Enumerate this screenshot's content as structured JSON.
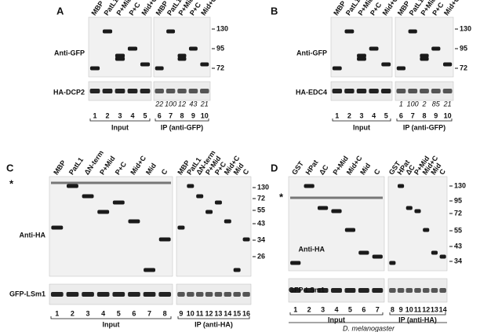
{
  "panels": [
    {
      "label": "A",
      "input_lanes": [
        "MBP",
        "PatL1",
        "P+Mid",
        "P+C",
        "Mid+C"
      ],
      "ip_lanes": [
        "MBP",
        "PatL1",
        "P+Mid",
        "P+C",
        "Mid+C"
      ],
      "row_labels": [
        "Anti-GFP",
        "HA-DCP2"
      ],
      "markers": [
        130,
        95,
        72
      ],
      "quantification": [
        22,
        100,
        12,
        43,
        21
      ],
      "input_numbers": [
        1,
        2,
        3,
        4,
        5
      ],
      "ip_numbers": [
        6,
        7,
        8,
        9,
        10
      ],
      "input_label": "Input",
      "ip_label": "IP (anti-GFP)"
    },
    {
      "label": "B",
      "input_lanes": [
        "MBP",
        "PatL1",
        "P+Mid",
        "P+C",
        "Mid+C"
      ],
      "ip_lanes": [
        "MBP",
        "PatL1",
        "P+Mid",
        "P+C",
        "Mid+C"
      ],
      "row_labels": [
        "Anti-GFP",
        "HA-EDC4"
      ],
      "markers": [
        130,
        95,
        72
      ],
      "quantification": [
        1,
        100,
        2,
        85,
        21
      ],
      "input_numbers": [
        1,
        2,
        3,
        4,
        5
      ],
      "ip_numbers": [
        6,
        7,
        8,
        9,
        10
      ],
      "input_label": "Input",
      "ip_label": "IP (anti-GFP)"
    },
    {
      "label": "C",
      "input_lanes": [
        "MBP",
        "PatL1",
        "ΔN-term",
        "P+Mid",
        "P+C",
        "Mid+C",
        "Mid",
        "C"
      ],
      "ip_lanes": [
        "MBP",
        "PatL1",
        "ΔN-term",
        "P+Mid",
        "P+C",
        "Mid+C",
        "Mid",
        "C"
      ],
      "row_labels": [
        "Anti-HA",
        "GFP-LSm1"
      ],
      "markers": [
        130,
        72,
        55,
        43,
        34,
        26
      ],
      "star": "*",
      "input_numbers": [
        1,
        2,
        3,
        4,
        5,
        6,
        7,
        8
      ],
      "ip_numbers": [
        9,
        10,
        11,
        12,
        13,
        14,
        15,
        16
      ],
      "input_label": "Input",
      "ip_label": "IP (anti-HA)"
    },
    {
      "label": "D",
      "input_lanes": [
        "GST",
        "HPat",
        "ΔC",
        "P+Mid",
        "Mid+C",
        "Mid",
        "C"
      ],
      "ip_lanes": [
        "GST",
        "HPat",
        "ΔC",
        "P+Mid",
        "Mid+C",
        "Mid",
        "C"
      ],
      "row_labels": [
        "Anti-HA",
        "GFP-LSm1"
      ],
      "markers": [
        130,
        95,
        72,
        55,
        43,
        34
      ],
      "star": "*",
      "input_numbers": [
        1,
        2,
        3,
        4,
        5,
        6,
        7
      ],
      "ip_numbers": [
        8,
        9,
        10,
        11,
        12,
        13,
        14
      ],
      "input_label": "Input",
      "ip_label": "IP (anti-HA)",
      "species": "D. melanogaster"
    }
  ]
}
